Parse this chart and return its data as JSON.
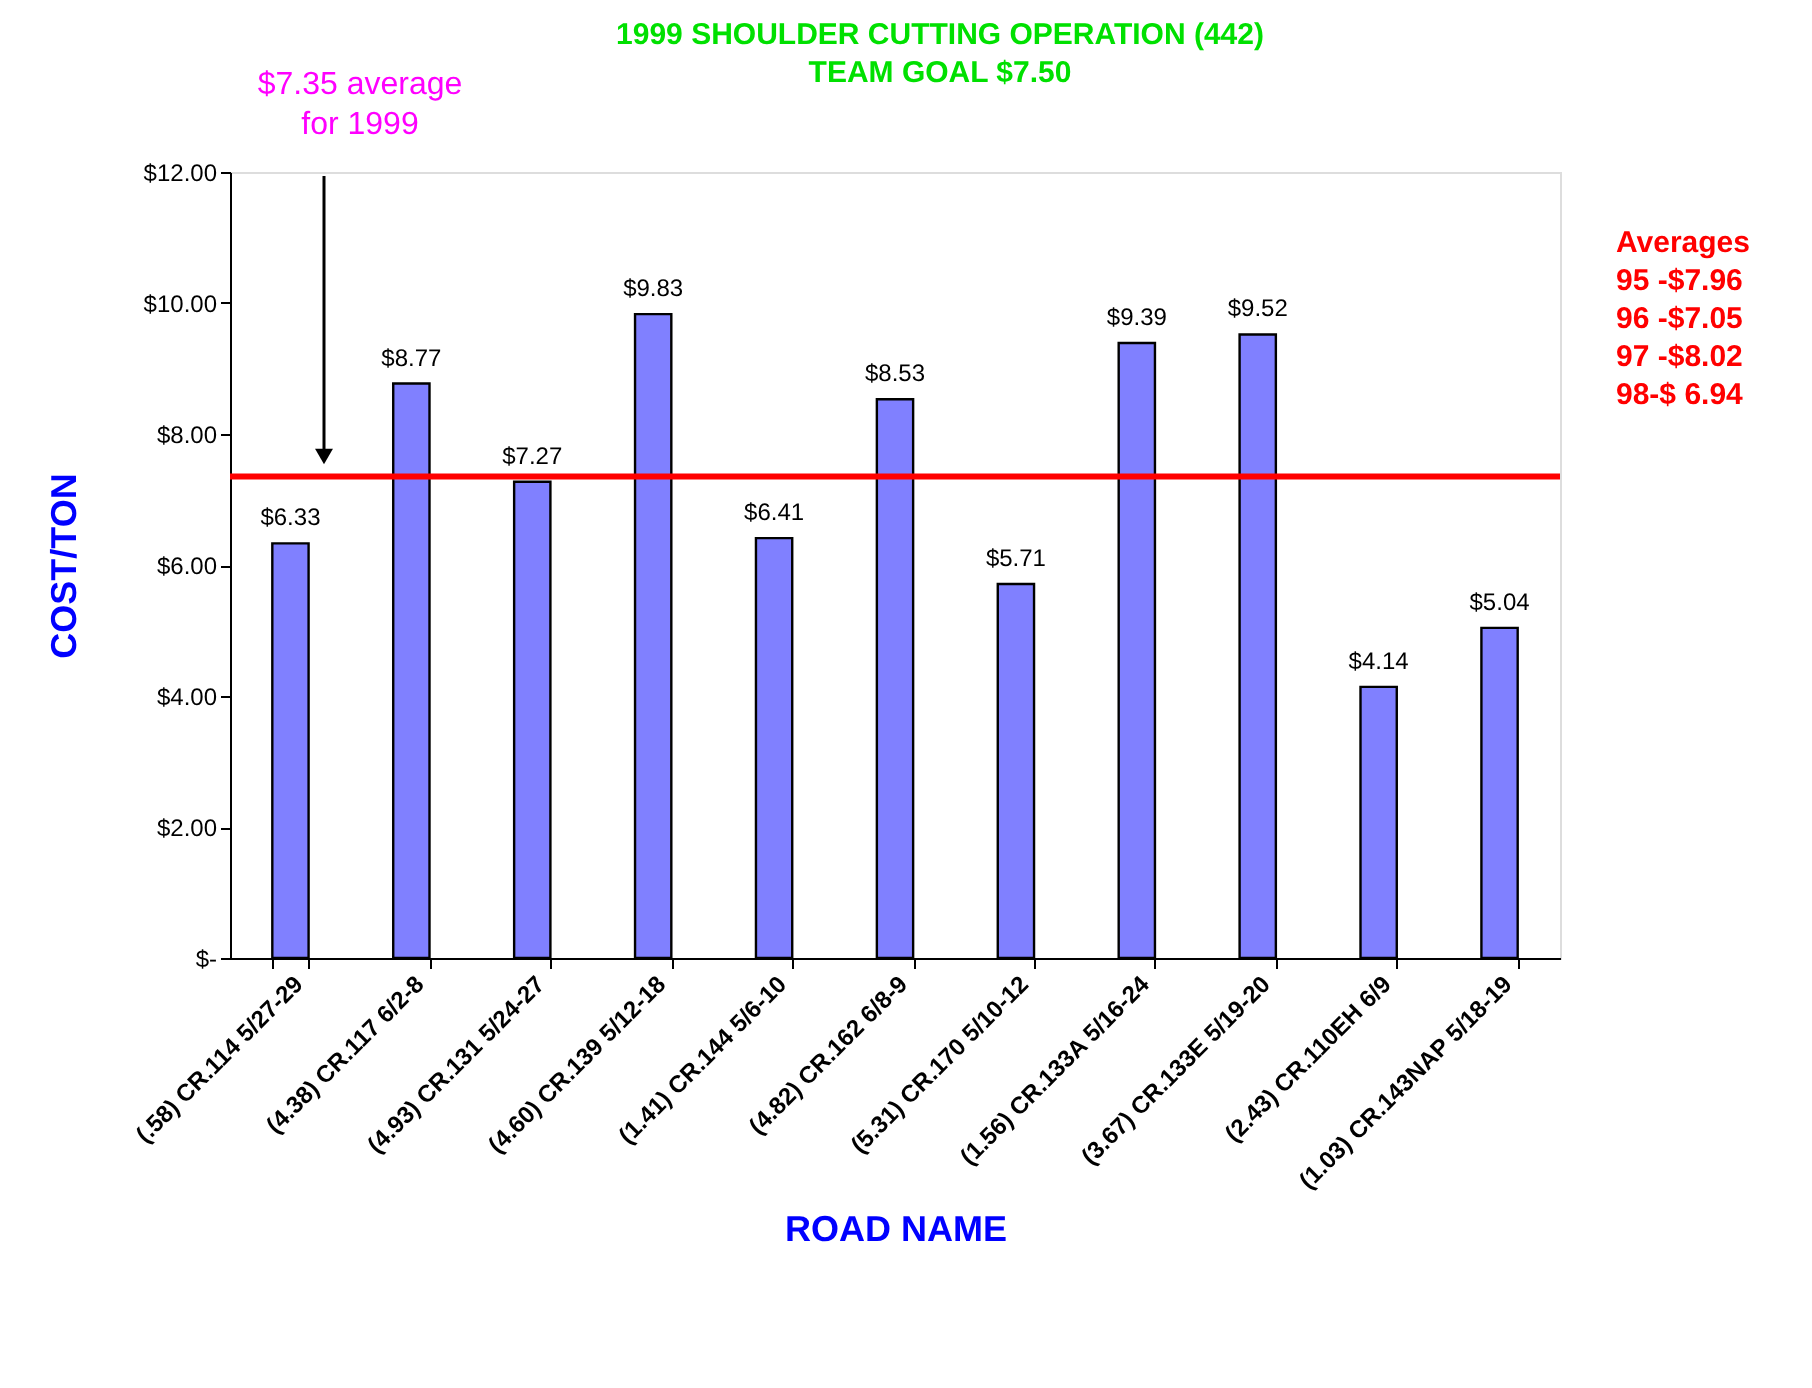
{
  "chart_data": {
    "type": "bar",
    "title": [
      "1999 SHOULDER CUTTING OPERATION (442)",
      "TEAM GOAL $7.50"
    ],
    "xlabel": "ROAD NAME",
    "ylabel": "COST/TON",
    "categories": [
      "(.58) CR.114 5/27-29",
      "(4.38) CR.117 6/2-8",
      "(4.93) CR.131 5/24-27",
      "(4.60) CR.139 5/12-18",
      "(1.41) CR.144 5/6-10",
      "(4.82) CR.162 6/8-9",
      "(5.31) CR.170 5/10-12",
      "(1.56) CR.133A 5/16-24",
      "(3.67) CR.133E 5/19-20",
      "(2.43) CR.110EH 6/9",
      "(1.03) CR.143NAP 5/18-19"
    ],
    "values": [
      6.33,
      8.77,
      7.27,
      9.83,
      6.41,
      8.53,
      5.71,
      9.39,
      9.52,
      4.14,
      5.04
    ],
    "value_labels": [
      "$6.33",
      "$8.77",
      "$7.27",
      "$9.83",
      "$6.41",
      "$8.53",
      "$5.71",
      "$9.39",
      "$9.52",
      "$4.14",
      "$5.04"
    ],
    "color": "#8080ff",
    "ylim": [
      0,
      12
    ],
    "yticks": [
      {
        "value": 0,
        "label": "$-"
      },
      {
        "value": 2,
        "label": "$2.00"
      },
      {
        "value": 4,
        "label": "$4.00"
      },
      {
        "value": 6,
        "label": "$6.00"
      },
      {
        "value": 8,
        "label": "$8.00"
      },
      {
        "value": 10,
        "label": "$10.00"
      },
      {
        "value": 12,
        "label": "$12.00"
      }
    ],
    "ref_lines": [
      {
        "axis": "y",
        "value": 7.35,
        "color": "#ff0000"
      }
    ],
    "annotations": [
      "$7.35 average\n for 1999",
      "Averages\n95 -$7.96\n96 -$7.05\n97 -$8.02\n98-$ 6.94"
    ],
    "grid": false
  }
}
